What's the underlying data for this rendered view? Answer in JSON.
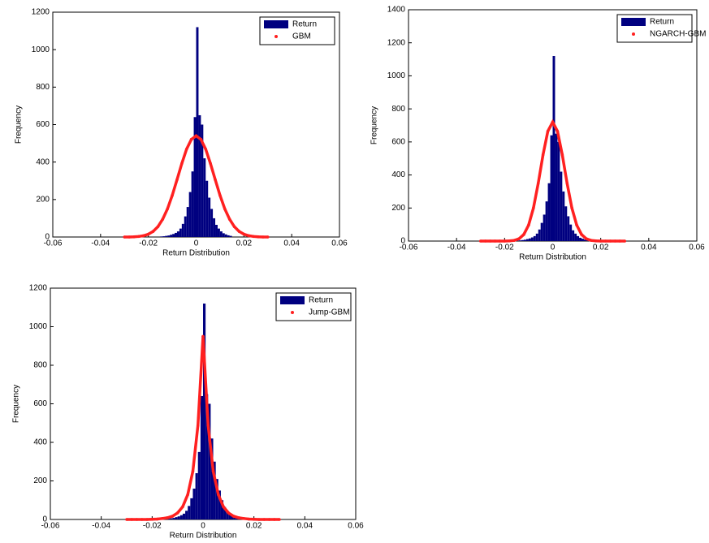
{
  "chart_data": [
    {
      "type": "histogram",
      "xlabel": "Return Distribution",
      "ylabel": "Frequency",
      "xlim": [
        -0.06,
        0.06
      ],
      "xticks": [
        -0.06,
        -0.04,
        -0.02,
        0,
        0.02,
        0.04,
        0.06
      ],
      "ylim": [
        0,
        1200
      ],
      "yticks": [
        0,
        200,
        400,
        600,
        800,
        1000,
        1200
      ],
      "legend": "upper right",
      "series": [
        {
          "name": "Return",
          "color": "#000080",
          "bins": [
            -0.015,
            -0.014,
            -0.013,
            -0.012,
            -0.011,
            -0.01,
            -0.009,
            -0.008,
            -0.007,
            -0.006,
            -0.005,
            -0.004,
            -0.003,
            -0.002,
            -0.001,
            0,
            0.001,
            0.002,
            0.003,
            0.004,
            0.005,
            0.006,
            0.007,
            0.008,
            0.009,
            0.01,
            0.011,
            0.012,
            0.013,
            0.014,
            0.015
          ],
          "values": [
            3,
            4,
            6,
            8,
            12,
            16,
            22,
            30,
            45,
            70,
            110,
            160,
            240,
            350,
            640,
            1120,
            650,
            600,
            420,
            300,
            210,
            150,
            100,
            65,
            45,
            30,
            20,
            14,
            9,
            6
          ]
        },
        {
          "name": "GBM",
          "color": "#ff2020",
          "x": [
            -0.03,
            -0.028,
            -0.026,
            -0.024,
            -0.022,
            -0.02,
            -0.018,
            -0.016,
            -0.014,
            -0.012,
            -0.01,
            -0.008,
            -0.006,
            -0.004,
            -0.002,
            0,
            0.002,
            0.004,
            0.006,
            0.008,
            0.01,
            0.012,
            0.014,
            0.016,
            0.018,
            0.02,
            0.022,
            0.024,
            0.026,
            0.028,
            0.03
          ],
          "values": [
            0,
            0,
            1,
            3,
            7,
            15,
            30,
            55,
            95,
            150,
            222,
            306,
            392,
            469,
            521,
            540,
            521,
            469,
            392,
            306,
            222,
            150,
            95,
            55,
            30,
            15,
            7,
            3,
            1,
            0,
            0
          ]
        }
      ]
    },
    {
      "type": "histogram",
      "xlabel": "Return Distribution",
      "ylabel": "Frequency",
      "xlim": [
        -0.06,
        0.06
      ],
      "xticks": [
        -0.06,
        -0.04,
        -0.02,
        0,
        0.02,
        0.04,
        0.06
      ],
      "ylim": [
        0,
        1400
      ],
      "yticks": [
        0,
        200,
        400,
        600,
        800,
        1000,
        1200,
        1400
      ],
      "legend": "upper right",
      "series": [
        {
          "name": "Return",
          "color": "#000080",
          "bins": [
            -0.015,
            -0.014,
            -0.013,
            -0.012,
            -0.011,
            -0.01,
            -0.009,
            -0.008,
            -0.007,
            -0.006,
            -0.005,
            -0.004,
            -0.003,
            -0.002,
            -0.001,
            0,
            0.001,
            0.002,
            0.003,
            0.004,
            0.005,
            0.006,
            0.007,
            0.008,
            0.009,
            0.01,
            0.011,
            0.012,
            0.013,
            0.014,
            0.015
          ],
          "values": [
            3,
            4,
            6,
            8,
            12,
            16,
            22,
            30,
            45,
            70,
            110,
            160,
            240,
            350,
            640,
            1120,
            650,
            600,
            420,
            300,
            210,
            150,
            100,
            65,
            45,
            30,
            20,
            14,
            9,
            6
          ]
        },
        {
          "name": "NGARCH-GBM",
          "color": "#ff2020",
          "x": [
            -0.03,
            -0.028,
            -0.026,
            -0.024,
            -0.022,
            -0.02,
            -0.018,
            -0.016,
            -0.014,
            -0.012,
            -0.01,
            -0.008,
            -0.006,
            -0.004,
            -0.002,
            0,
            0.002,
            0.004,
            0.006,
            0.008,
            0.01,
            0.012,
            0.014,
            0.016,
            0.018,
            0.02,
            0.022,
            0.024,
            0.026,
            0.028,
            0.03
          ],
          "values": [
            0,
            0,
            0,
            0,
            0,
            0,
            1,
            4,
            14,
            40,
            97,
            200,
            350,
            523,
            665,
            720,
            665,
            523,
            350,
            200,
            97,
            40,
            14,
            4,
            1,
            0,
            0,
            0,
            0,
            0,
            0
          ]
        }
      ]
    },
    {
      "type": "histogram",
      "xlabel": "Return Distribution",
      "ylabel": "Frequency",
      "xlim": [
        -0.06,
        0.06
      ],
      "xticks": [
        -0.06,
        -0.04,
        -0.02,
        0,
        0.02,
        0.04,
        0.06
      ],
      "ylim": [
        0,
        1200
      ],
      "yticks": [
        0,
        200,
        400,
        600,
        800,
        1000,
        1200
      ],
      "legend": "upper right",
      "series": [
        {
          "name": "Return",
          "color": "#000080",
          "bins": [
            -0.015,
            -0.014,
            -0.013,
            -0.012,
            -0.011,
            -0.01,
            -0.009,
            -0.008,
            -0.007,
            -0.006,
            -0.005,
            -0.004,
            -0.003,
            -0.002,
            -0.001,
            0,
            0.001,
            0.002,
            0.003,
            0.004,
            0.005,
            0.006,
            0.007,
            0.008,
            0.009,
            0.01,
            0.011,
            0.012,
            0.013,
            0.014,
            0.015
          ],
          "values": [
            3,
            4,
            6,
            8,
            12,
            16,
            22,
            30,
            45,
            70,
            110,
            160,
            240,
            350,
            640,
            1120,
            650,
            600,
            420,
            300,
            210,
            150,
            100,
            65,
            45,
            30,
            20,
            14,
            9,
            6
          ]
        },
        {
          "name": "Jump-GBM",
          "color": "#ff2020",
          "x": [
            -0.03,
            -0.028,
            -0.026,
            -0.024,
            -0.022,
            -0.02,
            -0.018,
            -0.016,
            -0.014,
            -0.012,
            -0.01,
            -0.008,
            -0.006,
            -0.004,
            -0.002,
            0,
            0.002,
            0.004,
            0.006,
            0.008,
            0.01,
            0.012,
            0.014,
            0.016,
            0.018,
            0.02,
            0.022,
            0.024,
            0.026,
            0.028,
            0.03
          ],
          "values": [
            0,
            0,
            0,
            0,
            0,
            1,
            2,
            5,
            9,
            17,
            34,
            66,
            129,
            250,
            488,
            950,
            488,
            250,
            129,
            66,
            34,
            17,
            9,
            5,
            2,
            1,
            0,
            0,
            0,
            0,
            0
          ]
        }
      ]
    }
  ]
}
